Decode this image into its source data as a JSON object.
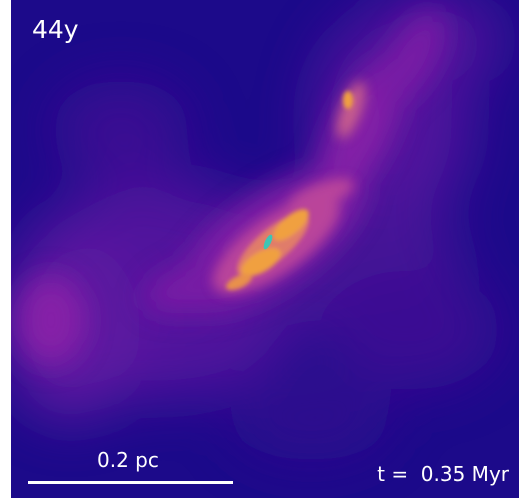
{
  "simulation_label": "44y",
  "scale_bar": {
    "label": "0.2 pc"
  },
  "time": {
    "label": "t =  0.35 Myr"
  },
  "colors": {
    "background": "#1c0a8a",
    "diffuse_gas": "#7b1fa8",
    "filament": "#c04a9a",
    "dense_core": "#f0a040",
    "peak": "#3cc6b4",
    "text": "#ffffff"
  },
  "colormap": "plasma-like"
}
